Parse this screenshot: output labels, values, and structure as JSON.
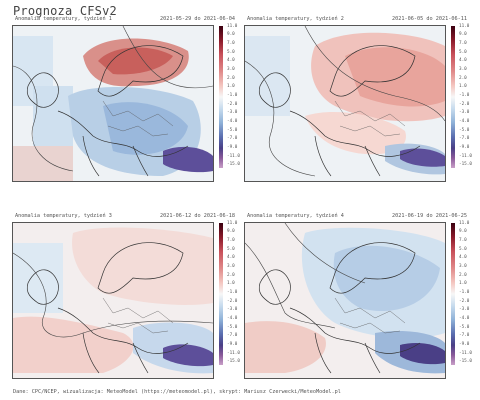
{
  "title": "Prognoza CFSv2",
  "colors": {
    "warm_strong": "#d76a6a",
    "warm_light": "#f4c6c0",
    "neutral": "#f2f2f2",
    "cool_light": "#c9dcee",
    "cool_mid": "#8fb2d8",
    "cool_strong": "#4a3f86",
    "scale_top": "#3a0010",
    "scale_bottom": "#c9a0c8"
  },
  "scale_labels": [
    "11.0",
    "9.0",
    "7.0",
    "5.0",
    "4.0",
    "3.0",
    "2.0",
    "1.0",
    "-1.0",
    "-2.0",
    "-3.0",
    "-4.0",
    "-5.0",
    "-7.0",
    "-9.0",
    "-11.0",
    "-15.0"
  ],
  "panels": [
    {
      "title": "Anomalia temperatury, tydzień 1",
      "dates": "2021-05-29 do 2021-06-04"
    },
    {
      "title": "Anomalia temperatury, tydzień 2",
      "dates": "2021-06-05 do 2021-06-11"
    },
    {
      "title": "Anomalia temperatury, tydzień 3",
      "dates": "2021-06-12 do 2021-06-18"
    },
    {
      "title": "Anomalia temperatury, tydzień 4",
      "dates": "2021-06-19 do 2021-06-25"
    }
  ],
  "footer": "Dane: CPC/NCEP, wizualizacja: MeteoModel (https://meteomodel.pl), skrypt: Mariusz Czerwecki/MeteoModel.pl"
}
